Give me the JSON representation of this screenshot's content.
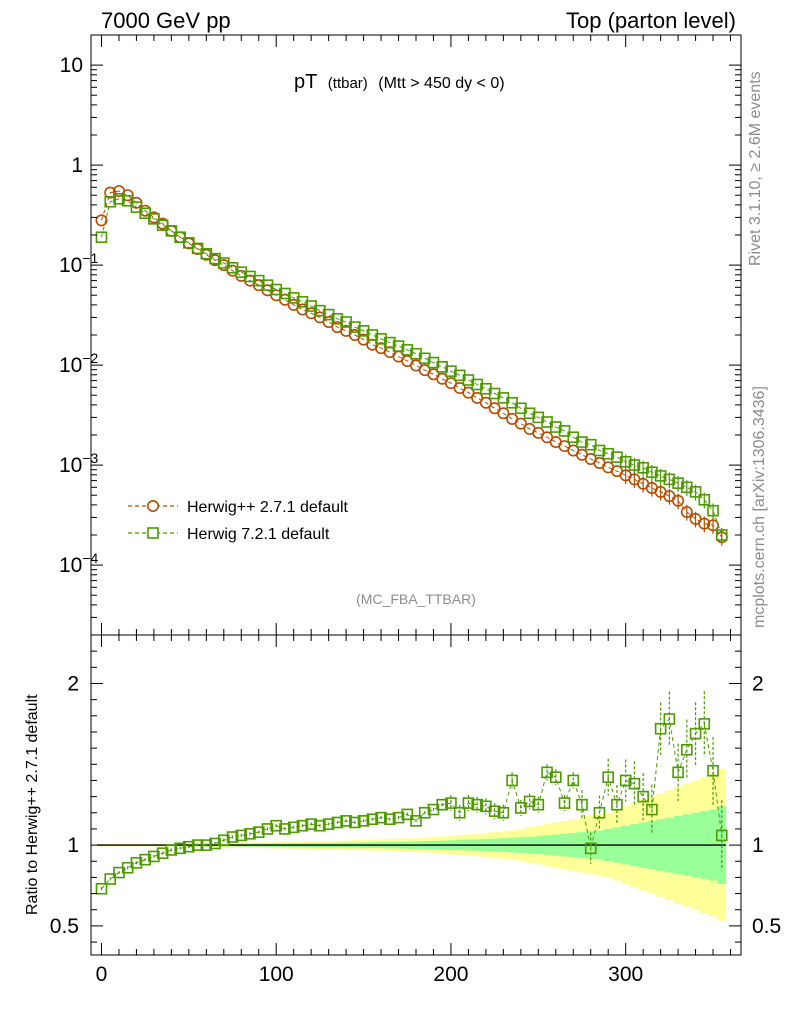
{
  "header": {
    "left": "7000 GeV pp",
    "right": "Top (parton level)"
  },
  "side_text": {
    "rivet": "Rivet 3.1.10, ≥ 2.6M events",
    "mcplots": "mcplots.cern.ch [arXiv:1306.3436]"
  },
  "watermark": "(MC_FBA_TTBAR)",
  "colors": {
    "herwigpp": "#b34d00",
    "herwig7": "#4d9900",
    "band_inner": "#99ff99",
    "band_outer": "#ffff99"
  },
  "chart_data": [
    {
      "type": "scatter",
      "title_main": "pT",
      "title_sub1": "(ttbar)",
      "title_sub2": "(Mtt > 450 dy < 0)",
      "y_scale": "log",
      "ylim": [
        2e-05,
        20
      ],
      "xlim": [
        -6,
        366
      ],
      "y_ticks": [
        {
          "value": 10,
          "label": "10"
        },
        {
          "value": 1,
          "label": "1"
        },
        {
          "value": 0.1,
          "label": "10",
          "exp": "−1"
        },
        {
          "value": 0.01,
          "label": "10",
          "exp": "−2"
        },
        {
          "value": 0.001,
          "label": "10",
          "exp": "−3"
        },
        {
          "value": 0.0001,
          "label": "10",
          "exp": "−4"
        }
      ],
      "legend_position": "lower-left",
      "x": [
        0,
        5,
        10,
        15,
        20,
        25,
        30,
        35,
        40,
        45,
        50,
        55,
        60,
        65,
        70,
        75,
        80,
        85,
        90,
        95,
        100,
        105,
        110,
        115,
        120,
        125,
        130,
        135,
        140,
        145,
        150,
        155,
        160,
        165,
        170,
        175,
        180,
        185,
        190,
        195,
        200,
        205,
        210,
        215,
        220,
        225,
        230,
        235,
        240,
        245,
        250,
        255,
        260,
        265,
        270,
        275,
        280,
        285,
        290,
        295,
        300,
        305,
        310,
        315,
        320,
        325,
        330,
        335,
        340,
        345,
        350,
        355
      ],
      "series": [
        {
          "name": "Herwig++ 2.7.1 default",
          "marker": "circle",
          "values": [
            0.28,
            0.53,
            0.55,
            0.5,
            0.42,
            0.35,
            0.3,
            0.26,
            0.22,
            0.19,
            0.165,
            0.145,
            0.127,
            0.112,
            0.1,
            0.088,
            0.078,
            0.07,
            0.063,
            0.056,
            0.05,
            0.045,
            0.04,
            0.036,
            0.033,
            0.03,
            0.027,
            0.024,
            0.022,
            0.02,
            0.018,
            0.016,
            0.0148,
            0.0135,
            0.0122,
            0.011,
            0.0099,
            0.0089,
            0.0081,
            0.0073,
            0.0066,
            0.0059,
            0.0053,
            0.0047,
            0.0042,
            0.0037,
            0.0033,
            0.0029,
            0.0026,
            0.0023,
            0.0021,
            0.0019,
            0.0017,
            0.00155,
            0.0014,
            0.00127,
            0.00115,
            0.00105,
            0.00095,
            0.00087,
            0.00079,
            0.00072,
            0.00065,
            0.00059,
            0.00054,
            0.00049,
            0.00044,
            0.00034,
            0.00029,
            0.00026,
            0.00025,
            0.00019
          ]
        },
        {
          "name": "Herwig 7.2.1 default",
          "marker": "square",
          "values": [
            0.19,
            0.43,
            0.46,
            0.44,
            0.38,
            0.33,
            0.29,
            0.25,
            0.22,
            0.19,
            0.167,
            0.147,
            0.13,
            0.116,
            0.105,
            0.094,
            0.085,
            0.077,
            0.07,
            0.063,
            0.057,
            0.052,
            0.047,
            0.043,
            0.039,
            0.035,
            0.032,
            0.029,
            0.027,
            0.024,
            0.022,
            0.02,
            0.0183,
            0.0168,
            0.0155,
            0.0142,
            0.013,
            0.0117,
            0.0106,
            0.0096,
            0.0087,
            0.0079,
            0.0071,
            0.0064,
            0.0058,
            0.0052,
            0.0047,
            0.0042,
            0.0037,
            0.0033,
            0.003,
            0.0027,
            0.0024,
            0.0022,
            0.0019,
            0.0017,
            0.0016,
            0.0014,
            0.0013,
            0.0012,
            0.00108,
            0.001,
            0.00094,
            0.00085,
            0.00078,
            0.00072,
            0.00066,
            0.0006,
            0.00054,
            0.00045,
            0.00035,
            0.0002
          ]
        }
      ]
    },
    {
      "type": "scatter",
      "ylabel": "Ratio to Herwig++ 2.7.1 default",
      "ylim": [
        0.32,
        2.3
      ],
      "xlim": [
        -6,
        366
      ],
      "y_ticks": [
        2,
        1,
        0.5
      ],
      "x_ticks": [
        0,
        100,
        200,
        300
      ],
      "x": [
        0,
        5,
        10,
        15,
        20,
        25,
        30,
        35,
        40,
        45,
        50,
        55,
        60,
        65,
        70,
        75,
        80,
        85,
        90,
        95,
        100,
        105,
        110,
        115,
        120,
        125,
        130,
        135,
        140,
        145,
        150,
        155,
        160,
        165,
        170,
        175,
        180,
        185,
        190,
        195,
        200,
        205,
        210,
        215,
        220,
        225,
        230,
        235,
        240,
        245,
        250,
        255,
        260,
        265,
        270,
        275,
        280,
        285,
        290,
        295,
        300,
        305,
        310,
        315,
        320,
        325,
        330,
        335,
        340,
        345,
        350,
        355
      ],
      "reference": 1,
      "series": [
        {
          "name": "Herwig 7.2.1 default",
          "values": [
            0.73,
            0.79,
            0.83,
            0.86,
            0.89,
            0.91,
            0.93,
            0.95,
            0.97,
            0.98,
            0.99,
            1.0,
            1.0,
            1.01,
            1.03,
            1.05,
            1.06,
            1.07,
            1.08,
            1.1,
            1.12,
            1.1,
            1.11,
            1.12,
            1.13,
            1.12,
            1.13,
            1.14,
            1.15,
            1.14,
            1.15,
            1.16,
            1.17,
            1.16,
            1.17,
            1.19,
            1.15,
            1.2,
            1.22,
            1.25,
            1.26,
            1.2,
            1.26,
            1.25,
            1.24,
            1.21,
            1.2,
            1.4,
            1.23,
            1.27,
            1.25,
            1.45,
            1.42,
            1.26,
            1.4,
            1.25,
            0.98,
            1.2,
            1.42,
            1.25,
            1.4,
            1.38,
            1.3,
            1.22,
            1.72,
            1.78,
            1.45,
            1.59,
            1.69,
            1.75,
            1.46,
            1.06
          ]
        }
      ],
      "band_inner_halfwidth": [
        0.004,
        0.004,
        0.004,
        0.004,
        0.004,
        0.004,
        0.004,
        0.004,
        0.005,
        0.005,
        0.006,
        0.006,
        0.007,
        0.007,
        0.008,
        0.008,
        0.009,
        0.009,
        0.01,
        0.01,
        0.011,
        0.011,
        0.012,
        0.012,
        0.013,
        0.013,
        0.014,
        0.014,
        0.015,
        0.016,
        0.017,
        0.018,
        0.019,
        0.02,
        0.021,
        0.022,
        0.023,
        0.024,
        0.026,
        0.028,
        0.03,
        0.032,
        0.034,
        0.036,
        0.038,
        0.04,
        0.043,
        0.046,
        0.049,
        0.052,
        0.055,
        0.06,
        0.065,
        0.07,
        0.075,
        0.08,
        0.085,
        0.09,
        0.1,
        0.11,
        0.12,
        0.13,
        0.14,
        0.15,
        0.16,
        0.17,
        0.18,
        0.19,
        0.2,
        0.21,
        0.22,
        0.24
      ],
      "band_outer_halfwidth": [
        0.008,
        0.008,
        0.008,
        0.008,
        0.008,
        0.008,
        0.008,
        0.008,
        0.009,
        0.009,
        0.01,
        0.011,
        0.012,
        0.013,
        0.014,
        0.015,
        0.016,
        0.017,
        0.018,
        0.019,
        0.02,
        0.021,
        0.022,
        0.023,
        0.024,
        0.025,
        0.026,
        0.027,
        0.028,
        0.03,
        0.032,
        0.034,
        0.036,
        0.038,
        0.04,
        0.042,
        0.044,
        0.046,
        0.05,
        0.054,
        0.058,
        0.062,
        0.066,
        0.07,
        0.075,
        0.08,
        0.085,
        0.09,
        0.1,
        0.11,
        0.12,
        0.13,
        0.14,
        0.15,
        0.16,
        0.17,
        0.18,
        0.19,
        0.2,
        0.22,
        0.24,
        0.26,
        0.28,
        0.3,
        0.32,
        0.34,
        0.36,
        0.38,
        0.4,
        0.42,
        0.44,
        0.47
      ]
    }
  ]
}
